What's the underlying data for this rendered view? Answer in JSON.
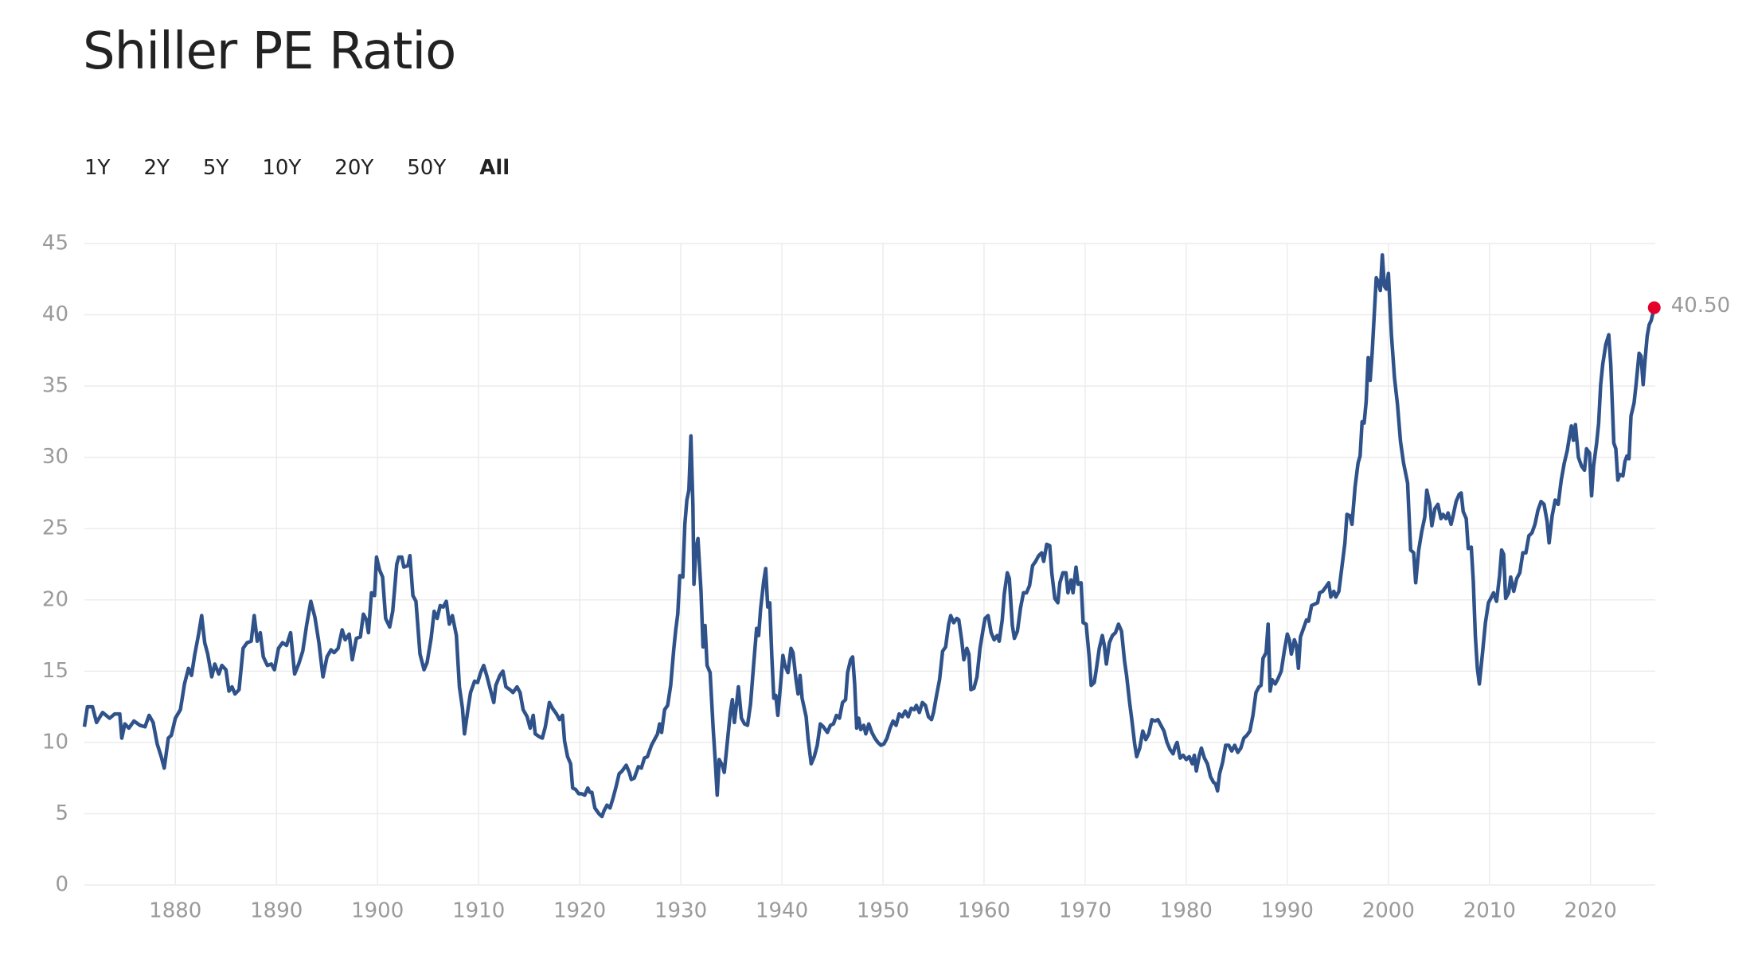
{
  "chart_data": {
    "type": "line",
    "title": "Shiller PE Ratio",
    "range_buttons": [
      "1Y",
      "2Y",
      "5Y",
      "10Y",
      "20Y",
      "50Y",
      "All"
    ],
    "color": "#2e5289",
    "grid": true,
    "xlim": [
      1871,
      2026.4
    ],
    "xticks": [
      1880,
      1890,
      1900,
      1910,
      1920,
      1930,
      1940,
      1950,
      1960,
      1970,
      1980,
      1990,
      2000,
      2010,
      2020
    ],
    "ylim": [
      0,
      45
    ],
    "yticks": [
      0,
      5,
      10,
      15,
      20,
      25,
      30,
      35,
      40,
      45
    ],
    "end_label": {
      "x": 2026.3,
      "value": 40.5,
      "label": "40.50",
      "color": "#e4002b"
    },
    "x": [
      1871.0,
      1871.3,
      1871.8,
      1872.2,
      1872.8,
      1873.5,
      1874.0,
      1874.5,
      1874.7,
      1875.0,
      1875.4,
      1875.9,
      1876.5,
      1877.0,
      1877.4,
      1877.8,
      1878.2,
      1878.6,
      1878.9,
      1879.3,
      1879.6,
      1880.0,
      1880.5,
      1880.9,
      1881.3,
      1881.6,
      1881.9,
      1882.3,
      1882.6,
      1882.9,
      1883.2,
      1883.6,
      1883.9,
      1884.3,
      1884.6,
      1885.0,
      1885.3,
      1885.6,
      1885.9,
      1886.3,
      1886.7,
      1887.1,
      1887.5,
      1887.8,
      1888.1,
      1888.4,
      1888.7,
      1889.1,
      1889.5,
      1889.8,
      1890.2,
      1890.6,
      1891.0,
      1891.4,
      1891.8,
      1892.2,
      1892.6,
      1893.0,
      1893.4,
      1893.8,
      1894.2,
      1894.6,
      1895.0,
      1895.4,
      1895.7,
      1896.1,
      1896.5,
      1896.8,
      1897.2,
      1897.5,
      1897.9,
      1898.3,
      1898.6,
      1898.9,
      1899.1,
      1899.4,
      1899.7,
      1899.9,
      1900.2,
      1900.5,
      1900.8,
      1901.2,
      1901.5,
      1901.9,
      1902.1,
      1902.4,
      1902.6,
      1903.0,
      1903.2,
      1903.5,
      1903.8,
      1904.2,
      1904.6,
      1904.9,
      1905.3,
      1905.6,
      1905.9,
      1906.2,
      1906.5,
      1906.8,
      1907.1,
      1907.4,
      1907.8,
      1908.1,
      1908.4,
      1908.6,
      1908.9,
      1909.2,
      1909.6,
      1909.9,
      1910.2,
      1910.5,
      1910.8,
      1911.2,
      1911.5,
      1911.7,
      1912.1,
      1912.4,
      1912.7,
      1913.1,
      1913.4,
      1913.8,
      1914.1,
      1914.4,
      1914.8,
      1915.1,
      1915.4,
      1915.6,
      1916.0,
      1916.3,
      1916.6,
      1917.0,
      1917.3,
      1917.7,
      1918.0,
      1918.3,
      1918.5,
      1918.8,
      1919.1,
      1919.3,
      1919.6,
      1919.9,
      1920.2,
      1920.5,
      1920.8,
      1921.0,
      1921.2,
      1921.5,
      1921.9,
      1922.2,
      1922.4,
      1922.7,
      1923.0,
      1923.3,
      1923.6,
      1923.9,
      1924.2,
      1924.6,
      1924.9,
      1925.1,
      1925.4,
      1925.8,
      1926.1,
      1926.4,
      1926.7,
      1927.1,
      1927.4,
      1927.7,
      1927.9,
      1928.1,
      1928.4,
      1928.7,
      1929.0,
      1929.3,
      1929.5,
      1929.7,
      1929.9,
      1930.2,
      1930.4,
      1930.6,
      1930.8,
      1931.0,
      1931.2,
      1931.3,
      1931.5,
      1931.7,
      1932.0,
      1932.2,
      1932.4,
      1932.6,
      1932.9,
      1933.2,
      1933.4,
      1933.6,
      1933.8,
      1934.1,
      1934.3,
      1934.6,
      1934.9,
      1935.1,
      1935.3,
      1935.5,
      1935.7,
      1936.0,
      1936.3,
      1936.6,
      1936.9,
      1937.2,
      1937.5,
      1937.7,
      1937.9,
      1938.2,
      1938.4,
      1938.6,
      1938.8,
      1939.0,
      1939.2,
      1939.4,
      1939.6,
      1939.9,
      1940.1,
      1940.3,
      1940.6,
      1940.9,
      1941.1,
      1941.4,
      1941.6,
      1941.8,
      1942.0,
      1942.4,
      1942.6,
      1942.9,
      1943.2,
      1943.5,
      1943.8,
      1944.1,
      1944.5,
      1944.8,
      1945.1,
      1945.4,
      1945.7,
      1946.0,
      1946.3,
      1946.5,
      1946.8,
      1947.0,
      1947.2,
      1947.4,
      1947.6,
      1947.8,
      1948.1,
      1948.3,
      1948.6,
      1948.9,
      1949.2,
      1949.5,
      1949.8,
      1950.1,
      1950.4,
      1950.7,
      1951.0,
      1951.3,
      1951.6,
      1951.9,
      1952.2,
      1952.5,
      1952.8,
      1953.1,
      1953.3,
      1953.6,
      1953.9,
      1954.2,
      1954.5,
      1954.8,
      1955.0,
      1955.3,
      1955.6,
      1955.9,
      1956.2,
      1956.5,
      1956.7,
      1957.0,
      1957.3,
      1957.5,
      1957.8,
      1958.0,
      1958.3,
      1958.5,
      1958.7,
      1959.0,
      1959.3,
      1959.6,
      1959.9,
      1960.1,
      1960.4,
      1960.7,
      1961.0,
      1961.3,
      1961.5,
      1961.8,
      1962.0,
      1962.3,
      1962.5,
      1962.8,
      1963.0,
      1963.3,
      1963.6,
      1963.9,
      1964.2,
      1964.5,
      1964.8,
      1965.1,
      1965.4,
      1965.7,
      1965.9,
      1966.2,
      1966.5,
      1966.7,
      1967.0,
      1967.3,
      1967.5,
      1967.8,
      1968.1,
      1968.3,
      1968.6,
      1968.8,
      1969.1,
      1969.3,
      1969.6,
      1969.8,
      1970.1,
      1970.4,
      1970.6,
      1970.9,
      1971.1,
      1971.4,
      1971.7,
      1971.9,
      1972.1,
      1972.4,
      1972.7,
      1973.0,
      1973.3,
      1973.6,
      1973.9,
      1974.1,
      1974.4,
      1974.6,
      1974.9,
      1975.1,
      1975.4,
      1975.7,
      1976.0,
      1976.3,
      1976.6,
      1976.9,
      1977.2,
      1977.5,
      1977.8,
      1978.1,
      1978.4,
      1978.7,
      1978.9,
      1979.1,
      1979.4,
      1979.7,
      1980.0,
      1980.3,
      1980.6,
      1980.8,
      1981.0,
      1981.3,
      1981.5,
      1981.8,
      1982.1,
      1982.4,
      1982.7,
      1982.9,
      1983.1,
      1983.3,
      1983.6,
      1983.9,
      1984.2,
      1984.5,
      1984.8,
      1985.1,
      1985.4,
      1985.7,
      1986.0,
      1986.3,
      1986.6,
      1986.9,
      1987.2,
      1987.4,
      1987.6,
      1987.9,
      1988.1,
      1988.3,
      1988.5,
      1988.8,
      1989.1,
      1989.4,
      1989.7,
      1990.0,
      1990.2,
      1990.4,
      1990.7,
      1990.9,
      1991.1,
      1991.3,
      1991.6,
      1991.9,
      1992.1,
      1992.4,
      1992.7,
      1993.0,
      1993.2,
      1993.5,
      1993.8,
      1994.1,
      1994.3,
      1994.6,
      1994.8,
      1995.1,
      1995.4,
      1995.7,
      1995.9,
      1996.2,
      1996.4,
      1996.7,
      1997.0,
      1997.2,
      1997.4,
      1997.6,
      1997.8,
      1998.0,
      1998.2,
      1998.4,
      1998.6,
      1998.8,
      1999.0,
      1999.2,
      1999.4,
      1999.6,
      1999.8,
      2000.0,
      2000.3,
      2000.6,
      2000.9,
      2001.2,
      2001.5,
      2001.9,
      2002.2,
      2002.5,
      2002.7,
      2003.0,
      2003.3,
      2003.6,
      2003.8,
      2004.1,
      2004.3,
      2004.6,
      2004.9,
      2005.2,
      2005.4,
      2005.7,
      2005.9,
      2006.2,
      2006.4,
      2006.7,
      2007.0,
      2007.2,
      2007.4,
      2007.7,
      2007.9,
      2008.2,
      2008.4,
      2008.6,
      2008.8,
      2009.0,
      2009.3,
      2009.6,
      2009.9,
      2010.2,
      2010.4,
      2010.7,
      2011.0,
      2011.2,
      2011.4,
      2011.6,
      2011.9,
      2012.1,
      2012.4,
      2012.7,
      2013.0,
      2013.3,
      2013.6,
      2013.9,
      2014.2,
      2014.5,
      2014.8,
      2015.1,
      2015.4,
      2015.7,
      2015.9,
      2016.2,
      2016.5,
      2016.8,
      2017.1,
      2017.4,
      2017.7,
      2017.9,
      2018.1,
      2018.3,
      2018.5,
      2018.8,
      2019.1,
      2019.4,
      2019.6,
      2019.9,
      2020.1,
      2020.3,
      2020.6,
      2020.8,
      2021.0,
      2021.2,
      2021.5,
      2021.8,
      2022.0,
      2022.3,
      2022.5,
      2022.7,
      2022.9,
      2023.2,
      2023.4,
      2023.6,
      2023.8,
      2024.0,
      2024.3,
      2024.5,
      2024.8,
      2025.0,
      2025.2,
      2025.4,
      2025.6,
      2025.8,
      2026.0,
      2026.3
    ],
    "values": [
      11.1,
      12.5,
      12.5,
      11.4,
      12.1,
      11.7,
      12.0,
      12.0,
      10.3,
      11.3,
      11.0,
      11.5,
      11.2,
      11.1,
      11.9,
      11.4,
      9.9,
      9.0,
      8.2,
      10.3,
      10.5,
      11.7,
      12.3,
      14.1,
      15.2,
      14.7,
      16.1,
      17.6,
      18.9,
      17.0,
      16.2,
      14.6,
      15.5,
      14.8,
      15.4,
      15.1,
      13.6,
      13.9,
      13.4,
      13.7,
      16.6,
      17.0,
      17.1,
      18.9,
      17.1,
      17.7,
      16.0,
      15.4,
      15.5,
      15.1,
      16.6,
      17.0,
      16.8,
      17.7,
      14.8,
      15.5,
      16.4,
      18.3,
      19.9,
      18.8,
      17.0,
      14.6,
      16.0,
      16.5,
      16.3,
      16.6,
      17.9,
      17.2,
      17.6,
      15.8,
      17.3,
      17.4,
      19.0,
      18.6,
      17.7,
      20.5,
      20.3,
      23.0,
      22.1,
      21.6,
      18.7,
      18.1,
      19.2,
      22.5,
      23.0,
      23.0,
      22.3,
      22.4,
      23.1,
      20.3,
      19.9,
      16.2,
      15.1,
      15.6,
      17.3,
      19.2,
      18.7,
      19.6,
      19.5,
      19.9,
      18.3,
      18.9,
      17.5,
      13.9,
      12.4,
      10.6,
      12.1,
      13.5,
      14.3,
      14.2,
      14.9,
      15.4,
      14.7,
      13.6,
      12.8,
      14.0,
      14.7,
      15.0,
      13.9,
      13.7,
      13.5,
      13.9,
      13.5,
      12.3,
      11.8,
      11.0,
      11.9,
      10.6,
      10.4,
      10.3,
      11.1,
      12.8,
      12.4,
      12.0,
      11.6,
      11.9,
      10.1,
      9.0,
      8.5,
      6.8,
      6.7,
      6.4,
      6.4,
      6.3,
      6.8,
      6.5,
      6.5,
      5.4,
      5.0,
      4.8,
      5.2,
      5.6,
      5.4,
      6.1,
      6.9,
      7.8,
      8.0,
      8.4,
      7.9,
      7.4,
      7.5,
      8.3,
      8.2,
      8.9,
      9.0,
      9.8,
      10.2,
      10.6,
      11.3,
      10.7,
      12.3,
      12.6,
      14.0,
      16.5,
      17.9,
      19.0,
      21.7,
      21.6,
      25.3,
      27.0,
      27.7,
      31.5,
      26.6,
      21.1,
      23.6,
      24.3,
      20.6,
      16.7,
      18.2,
      15.4,
      14.9,
      11.0,
      8.8,
      6.3,
      8.8,
      8.4,
      7.9,
      10.0,
      12.1,
      13.0,
      11.4,
      12.6,
      13.9,
      11.7,
      11.3,
      11.2,
      12.7,
      15.4,
      18.0,
      17.5,
      19.4,
      21.3,
      22.2,
      19.5,
      19.8,
      16.1,
      13.1,
      13.3,
      11.9,
      14.3,
      16.1,
      15.4,
      14.9,
      16.6,
      16.3,
      14.4,
      13.4,
      14.7,
      13.1,
      11.8,
      10.2,
      8.5,
      9.0,
      9.8,
      11.3,
      11.1,
      10.7,
      11.2,
      11.3,
      11.9,
      11.7,
      12.8,
      13.0,
      14.9,
      15.8,
      16.0,
      14.1,
      11.0,
      11.7,
      10.9,
      11.2,
      10.6,
      11.3,
      10.7,
      10.3,
      10.0,
      9.8,
      9.9,
      10.3,
      11.0,
      11.5,
      11.2,
      12.0,
      11.8,
      12.2,
      11.8,
      12.4,
      12.3,
      12.6,
      12.1,
      12.8,
      12.6,
      11.8,
      11.6,
      12.1,
      13.3,
      14.4,
      16.4,
      16.7,
      18.3,
      18.9,
      18.4,
      18.7,
      18.6,
      17.1,
      15.8,
      16.6,
      16.2,
      13.7,
      13.8,
      14.6,
      16.6,
      17.9,
      18.7,
      18.9,
      17.7,
      17.2,
      17.5,
      17.1,
      18.6,
      20.4,
      21.9,
      21.5,
      18.2,
      17.3,
      17.8,
      19.4,
      20.5,
      20.5,
      21.0,
      22.4,
      22.7,
      23.1,
      23.3,
      22.7,
      23.9,
      23.8,
      21.9,
      20.1,
      19.8,
      21.2,
      21.9,
      21.9,
      20.5,
      21.4,
      20.5,
      22.3,
      21.1,
      21.2,
      18.4,
      18.3,
      16.0,
      14.0,
      14.2,
      15.1,
      16.6,
      17.5,
      16.8,
      15.5,
      17.0,
      17.5,
      17.7,
      18.3,
      17.8,
      15.7,
      14.7,
      12.8,
      11.7,
      9.9,
      9.0,
      9.6,
      10.8,
      10.2,
      10.6,
      11.6,
      11.5,
      11.6,
      11.2,
      10.8,
      10.0,
      9.5,
      9.2,
      9.7,
      10.0,
      8.9,
      9.1,
      8.8,
      9.0,
      8.5,
      9.1,
      8.0,
      9.1,
      9.6,
      8.9,
      8.5,
      7.6,
      7.2,
      7.1,
      6.6,
      7.8,
      8.6,
      9.8,
      9.8,
      9.4,
      9.8,
      9.3,
      9.6,
      10.3,
      10.5,
      10.8,
      11.9,
      13.5,
      13.9,
      14.0,
      15.9,
      16.3,
      18.3,
      13.6,
      14.4,
      14.1,
      14.5,
      15.0,
      16.4,
      17.6,
      17.2,
      16.2,
      17.2,
      16.8,
      15.2,
      17.4,
      18.0,
      18.6,
      18.5,
      19.6,
      19.7,
      19.8,
      20.5,
      20.6,
      20.9,
      21.2,
      20.2,
      20.6,
      20.2,
      20.6,
      22.3,
      24.0,
      26.0,
      25.9,
      25.3,
      27.9,
      29.6,
      30.1,
      32.5,
      32.4,
      33.9,
      37.0,
      35.4,
      37.4,
      40.0,
      42.6,
      42.3,
      41.7,
      44.2,
      42.0,
      41.8,
      42.9,
      38.6,
      35.6,
      33.7,
      31.1,
      29.6,
      28.2,
      23.5,
      23.3,
      21.2,
      23.5,
      24.8,
      25.8,
      27.7,
      26.7,
      25.2,
      26.4,
      26.7,
      25.7,
      26.0,
      25.7,
      26.1,
      25.3,
      25.9,
      26.9,
      27.4,
      27.5,
      26.2,
      25.7,
      23.6,
      23.7,
      21.3,
      17.5,
      15.2,
      14.1,
      16.2,
      18.4,
      19.8,
      20.2,
      20.5,
      19.9,
      21.7,
      23.5,
      23.2,
      20.1,
      20.5,
      21.6,
      20.6,
      21.5,
      21.9,
      23.3,
      23.3,
      24.5,
      24.7,
      25.3,
      26.3,
      26.9,
      26.7,
      25.5,
      24.0,
      25.9,
      27.0,
      26.7,
      28.4,
      29.6,
      30.5,
      31.4,
      32.2,
      31.2,
      32.3,
      30.0,
      29.4,
      29.1,
      30.6,
      30.3,
      27.3,
      29.4,
      31.0,
      32.4,
      35.1,
      36.5,
      37.9,
      38.6,
      36.5,
      31.0,
      30.6,
      28.4,
      28.8,
      28.7,
      29.7,
      30.1,
      29.9,
      32.9,
      33.8,
      35.1,
      37.3,
      37.1,
      35.1,
      36.9,
      38.5,
      39.3,
      39.6,
      40.5
    ]
  }
}
